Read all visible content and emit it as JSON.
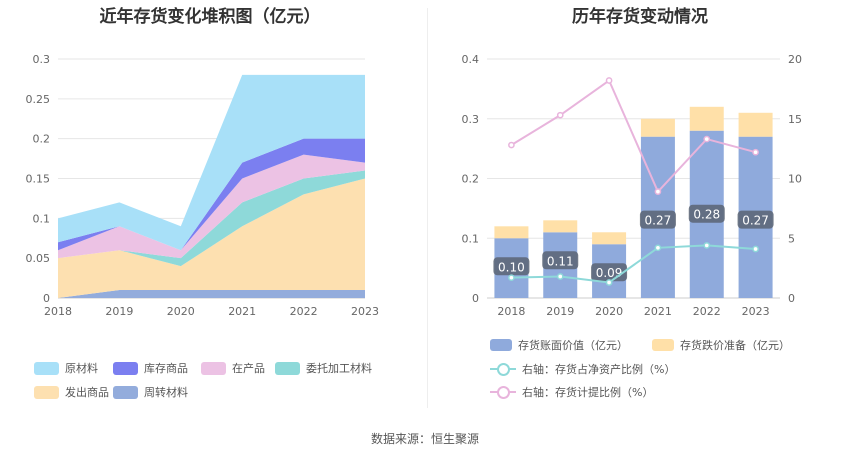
{
  "left_chart": {
    "title": "近年存货变化堆积图（亿元）",
    "legend_rows": [
      [
        {
          "label": "原材料",
          "color": "#a8e0f8"
        },
        {
          "label": "库存商品",
          "color": "#7b7ff0"
        },
        {
          "label": "在产品",
          "color": "#ecc2e4"
        },
        {
          "label": "委托加工材料",
          "color": "#8ed9d9"
        }
      ],
      [
        {
          "label": "发出商品",
          "color": "#fde0b0"
        },
        {
          "label": "周转材料",
          "color": "#93acdc"
        }
      ]
    ]
  },
  "right_chart": {
    "title": "历年存货变动情况",
    "legend": {
      "bar1": "存货账面价值（亿元）",
      "bar2": "存货跌价准备（亿元）",
      "line1": "右轴：存货占净资产比例（%）",
      "line2": "右轴：存货计提比例（%）"
    }
  },
  "source": "数据来源：恒生聚源",
  "chart_data": [
    {
      "type": "area",
      "stacked": true,
      "title": "近年存货变化堆积图（亿元）",
      "x": [
        "2018",
        "2019",
        "2020",
        "2021",
        "2022",
        "2023"
      ],
      "ylim": [
        0,
        0.3
      ],
      "yticks": [
        "0",
        "0.05",
        "0.1",
        "0.15",
        "0.2",
        "0.25",
        "0.3"
      ],
      "series": [
        {
          "name": "周转材料",
          "color": "#93acdc",
          "values": [
            0,
            0.01,
            0.01,
            0.01,
            0.01,
            0.01
          ]
        },
        {
          "name": "发出商品",
          "color": "#fde0b0",
          "values": [
            0.05,
            0.05,
            0.03,
            0.08,
            0.12,
            0.14
          ]
        },
        {
          "name": "委托加工材料",
          "color": "#8ed9d9",
          "values": [
            0,
            0,
            0.01,
            0.03,
            0.02,
            0.01
          ]
        },
        {
          "name": "在产品",
          "color": "#ecc2e4",
          "values": [
            0.01,
            0.03,
            0.01,
            0.03,
            0.03,
            0.01
          ]
        },
        {
          "name": "库存商品",
          "color": "#7b7ff0",
          "values": [
            0.01,
            0,
            0,
            0.02,
            0.02,
            0.03
          ]
        },
        {
          "name": "原材料",
          "color": "#a8e0f8",
          "values": [
            0.03,
            0.03,
            0.03,
            0.11,
            0.08,
            0.08
          ]
        }
      ],
      "grid": true,
      "legend_position": "bottom"
    },
    {
      "type": "bar",
      "stacked": true,
      "title": "历年存货变动情况",
      "categories": [
        "2018",
        "2019",
        "2020",
        "2021",
        "2022",
        "2023"
      ],
      "ylim": [
        0,
        0.4
      ],
      "yticks": [
        "0",
        "0.1",
        "0.2",
        "0.3",
        "0.4"
      ],
      "y2lim": [
        0,
        20
      ],
      "y2ticks": [
        "0",
        "5",
        "10",
        "15",
        "20"
      ],
      "series": [
        {
          "name": "存货账面价值（亿元）",
          "color": "#8faadc",
          "values": [
            0.1,
            0.11,
            0.09,
            0.27,
            0.28,
            0.27
          ],
          "labels": [
            "0.10",
            "0.11",
            "0.09",
            "0.27",
            "0.28",
            "0.27"
          ]
        },
        {
          "name": "存货跌价准备（亿元）",
          "color": "#ffe0a8",
          "values": [
            0.02,
            0.02,
            0.02,
            0.03,
            0.04,
            0.04
          ]
        },
        {
          "name": "右轴：存货占净资产比例（%）",
          "type": "line",
          "axis": "right",
          "color": "#8ed9d9",
          "values": [
            1.7,
            1.8,
            1.3,
            4.2,
            4.4,
            4.1
          ]
        },
        {
          "name": "右轴：存货计提比例（%）",
          "type": "line",
          "axis": "right",
          "color": "#e8b4dc",
          "values": [
            12.8,
            15.3,
            18.2,
            8.9,
            13.3,
            12.2
          ]
        }
      ],
      "grid": true,
      "legend_position": "bottom"
    }
  ]
}
